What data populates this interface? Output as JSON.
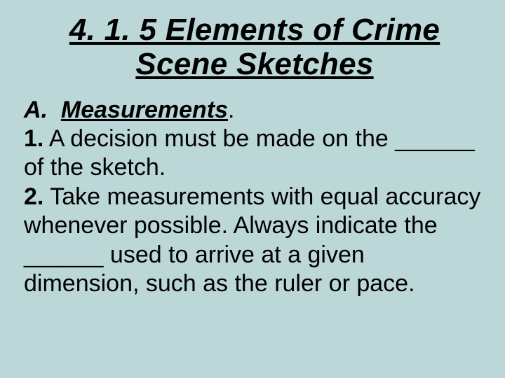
{
  "title_line1": "4. 1. 5 Elements of Crime",
  "title_line2": "Scene Sketches",
  "section_marker": "A.",
  "section_label": "Measurements",
  "section_period": ".",
  "item1_num": "1.",
  "item1_text_a": " A decision must be made on the ",
  "item1_blank": "______",
  "item1_text_b": " of the sketch.",
  "item2_num": "2.",
  "item2_text_a": " Take measurements with equal accuracy whenever possible.  Always indicate the ",
  "item2_blank": "______",
  "item2_text_b": " used to arrive at a given dimension, such as the ruler or pace."
}
